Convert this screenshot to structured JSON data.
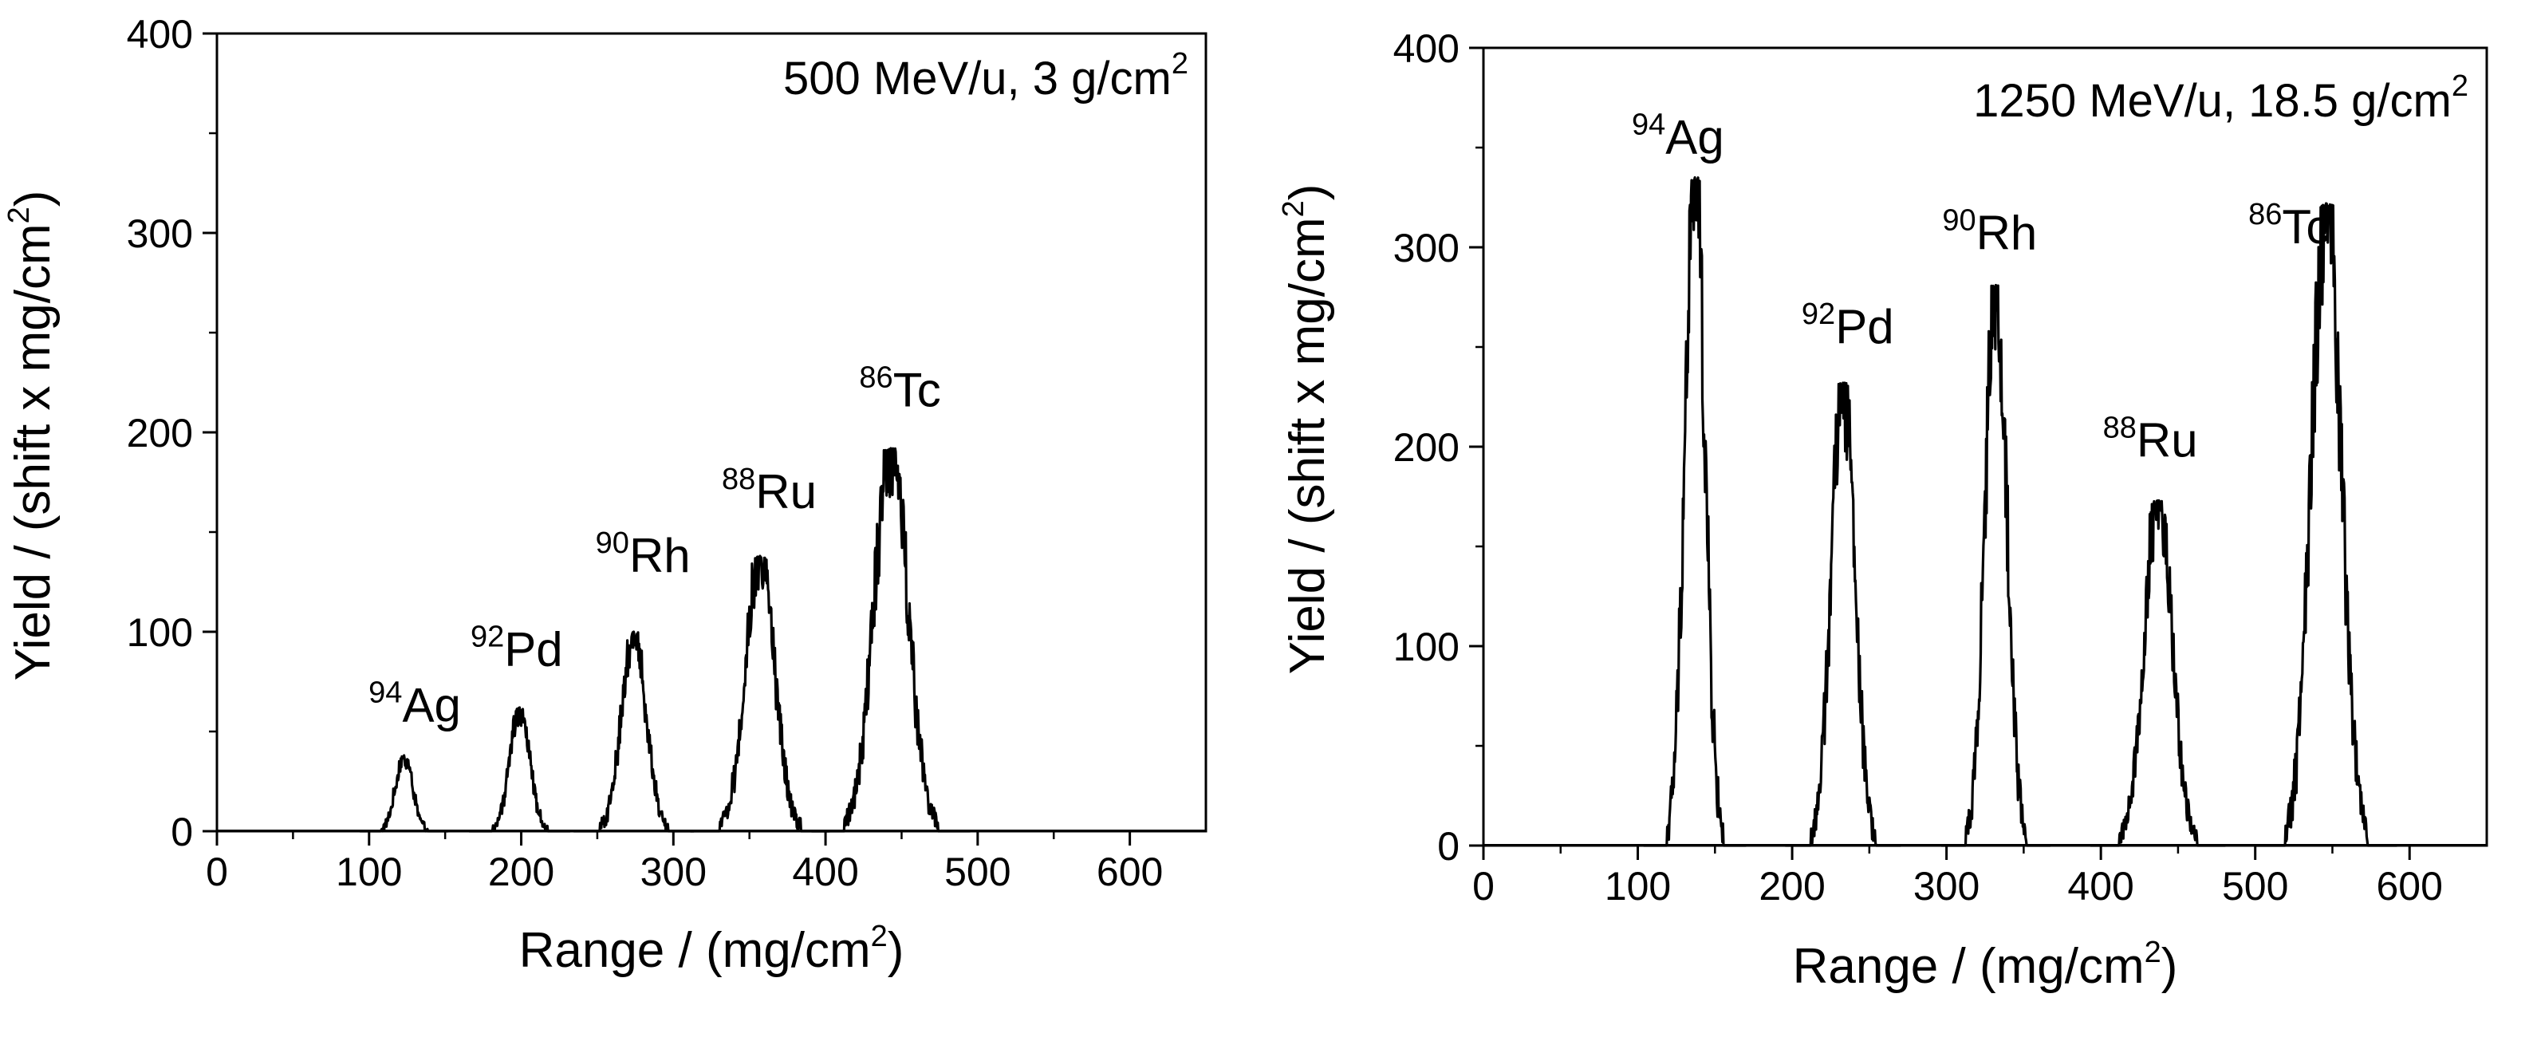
{
  "chart_data": [
    {
      "type": "line",
      "title_main": "500 MeV/u, 3 g/cm",
      "title_sup": "2",
      "xlabel_main": "Range / (mg/cm",
      "xlabel_sup": "2",
      "xlabel_end": ")",
      "ylabel_main": "Yield / (shift x mg/cm",
      "ylabel_sup": "2",
      "ylabel_end": ")",
      "xlim": [
        0,
        650
      ],
      "ylim": [
        0,
        400
      ],
      "xticks": [
        0,
        100,
        200,
        300,
        400,
        500,
        600
      ],
      "yticks": [
        0,
        100,
        200,
        300,
        400
      ],
      "grid": false,
      "series": [
        {
          "name": "94Ag",
          "mass": "94",
          "element": "Ag",
          "center": 123,
          "peak": 38,
          "width": 5.5,
          "label_x": 130,
          "label_y": 55
        },
        {
          "name": "92Pd",
          "mass": "92",
          "element": "Pd",
          "center": 199,
          "peak": 62,
          "width": 6.5,
          "label_x": 197,
          "label_y": 83
        },
        {
          "name": "90Rh",
          "mass": "90",
          "element": "Rh",
          "center": 274,
          "peak": 100,
          "width": 8,
          "label_x": 280,
          "label_y": 130
        },
        {
          "name": "88Ru",
          "mass": "88",
          "element": "Ru",
          "center": 357,
          "peak": 138,
          "width": 9.5,
          "label_x": 363,
          "label_y": 162
        },
        {
          "name": "86Tc",
          "mass": "86",
          "element": "Tc",
          "center": 443,
          "peak": 192,
          "width": 11,
          "label_x": 449,
          "label_y": 213
        }
      ]
    },
    {
      "type": "line",
      "title_main": "1250 MeV/u, 18.5 g/cm",
      "title_sup": "2",
      "xlabel_main": "Range / (mg/cm",
      "xlabel_sup": "2",
      "xlabel_end": ")",
      "ylabel_main": "Yield / (shift x mg/cm",
      "ylabel_sup": "2",
      "ylabel_end": ")",
      "xlim": [
        0,
        650
      ],
      "ylim": [
        0,
        400
      ],
      "xticks": [
        0,
        100,
        200,
        300,
        400,
        500,
        600
      ],
      "yticks": [
        0,
        100,
        200,
        300,
        400
      ],
      "grid": false,
      "series": [
        {
          "name": "94Ag",
          "mass": "94",
          "element": "Ag",
          "center": 137,
          "peak": 335,
          "width": 6.5,
          "label_x": 126,
          "label_y": 347
        },
        {
          "name": "92Pd",
          "mass": "92",
          "element": "Pd",
          "center": 233,
          "peak": 232,
          "width": 7.5,
          "label_x": 236,
          "label_y": 252
        },
        {
          "name": "90Rh",
          "mass": "90",
          "element": "Rh",
          "center": 332,
          "peak": 281,
          "width": 7,
          "label_x": 328,
          "label_y": 299
        },
        {
          "name": "88Ru",
          "mass": "88",
          "element": "Ru",
          "center": 437,
          "peak": 173,
          "width": 9,
          "label_x": 432,
          "label_y": 195
        },
        {
          "name": "86Tc",
          "mass": "86",
          "element": "Tc",
          "center": 546,
          "peak": 322,
          "width": 9.5,
          "label_x": 522,
          "label_y": 302
        }
      ]
    }
  ]
}
